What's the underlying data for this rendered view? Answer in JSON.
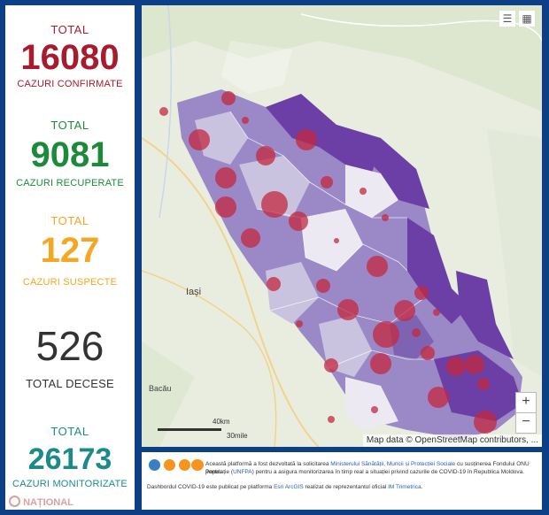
{
  "stats": {
    "confirmed": {
      "top": "TOTAL",
      "value": "16080",
      "bottom": "CAZURI CONFIRMATE",
      "color": "#a61c2e"
    },
    "recovered": {
      "top": "TOTAL",
      "value": "9081",
      "bottom": "CAZURI RECUPERATE",
      "color": "#1c8a3a"
    },
    "suspect": {
      "top": "TOTAL",
      "value": "127",
      "bottom": "CAZURI SUSPECTE",
      "color": "#f5a623"
    },
    "deaths": {
      "value": "526",
      "bottom": "TOTAL DECESE",
      "color": "#333333"
    },
    "monitored": {
      "top": "TOTAL",
      "value": "26173",
      "bottom": "CAZURI MONITORIZATE",
      "color": "#1c8a8a"
    }
  },
  "watermark": "NAȚIONAL",
  "map": {
    "city_label": "Iași",
    "city_label_2": "Bacău",
    "scale_km": "40km",
    "scale_mi": "30mile",
    "zoom_in": "+",
    "zoom_out": "−",
    "attribution": "Map data © OpenStreetMap contributors, ...",
    "colors": {
      "dark": "#6b3fa6",
      "mid": "#9a88c7",
      "light": "#c9c3e0",
      "pale": "#ece9f3",
      "bubble": "#c3283f"
    }
  },
  "footer": {
    "line1_a": "Această platformă a fost dezvoltată la solicitarea ",
    "line1_link": "Ministerului Sănătății, Muncii și Protecției Sociale",
    "line1_b": " cu susținerea Fondului ONU pentru",
    "line2_a": "Populație (",
    "line2_link": "UNFPA",
    "line2_b": ") pentru a asigura monitorizarea în timp real a situației privind cazurile de  COVID-19 în Republica Moldova.",
    "line3_a": "Dashbordul COVID-19 este publicat pe platforma ",
    "line3_link1": "Esri ArcGIS",
    "line3_b": " realizat de reprezentantul oficial ",
    "line3_link2": "IM Trimetrica",
    "line3_c": "."
  }
}
